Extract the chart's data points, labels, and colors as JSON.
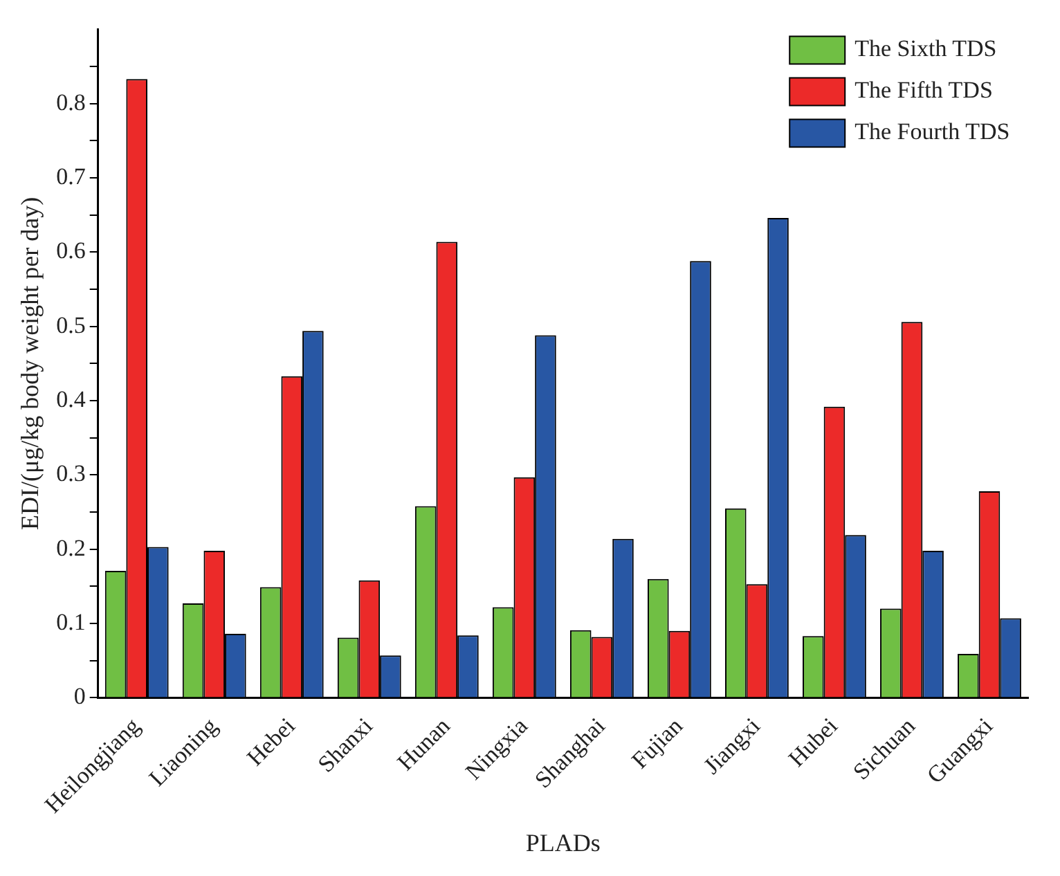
{
  "chart_data": {
    "type": "bar",
    "xlabel": "PLADs",
    "ylabel": "EDI/(μg/kg body weight per day)",
    "categories": [
      "Heilongjiang",
      "Liaoning",
      "Hebei",
      "Shanxi",
      "Hunan",
      "Ningxia",
      "Shanghai",
      "Fujian",
      "Jiangxi",
      "Hubei",
      "Sichuan",
      "Guangxi"
    ],
    "series": [
      {
        "name": "The Sixth TDS",
        "color": "#70bf44",
        "values": [
          0.171,
          0.127,
          0.149,
          0.081,
          0.258,
          0.122,
          0.091,
          0.16,
          0.255,
          0.083,
          0.12,
          0.059
        ]
      },
      {
        "name": "The Fifth TDS",
        "color": "#ec2a29",
        "values": [
          0.833,
          0.198,
          0.433,
          0.158,
          0.614,
          0.297,
          0.082,
          0.09,
          0.153,
          0.392,
          0.506,
          0.278
        ]
      },
      {
        "name": "The Fourth TDS",
        "color": "#2857a4",
        "values": [
          0.203,
          0.086,
          0.494,
          0.057,
          0.084,
          0.488,
          0.214,
          0.588,
          0.646,
          0.219,
          0.198,
          0.107
        ]
      }
    ],
    "ylim": [
      0,
      0.9
    ],
    "yticks": [
      0,
      {
        "value": 0.05,
        "label": null
      },
      0.1,
      {
        "value": 0.15,
        "label": null
      },
      0.2,
      {
        "value": 0.25,
        "label": null
      },
      0.3,
      {
        "value": 0.35,
        "label": null
      },
      0.4,
      {
        "value": 0.45,
        "label": null
      },
      0.5,
      {
        "value": 0.55,
        "label": null
      },
      0.6,
      {
        "value": 0.65,
        "label": null
      },
      0.7,
      {
        "value": 0.75,
        "label": null
      },
      0.8,
      {
        "value": 0.85,
        "label": null
      }
    ],
    "grid": false,
    "legend": "top right"
  }
}
